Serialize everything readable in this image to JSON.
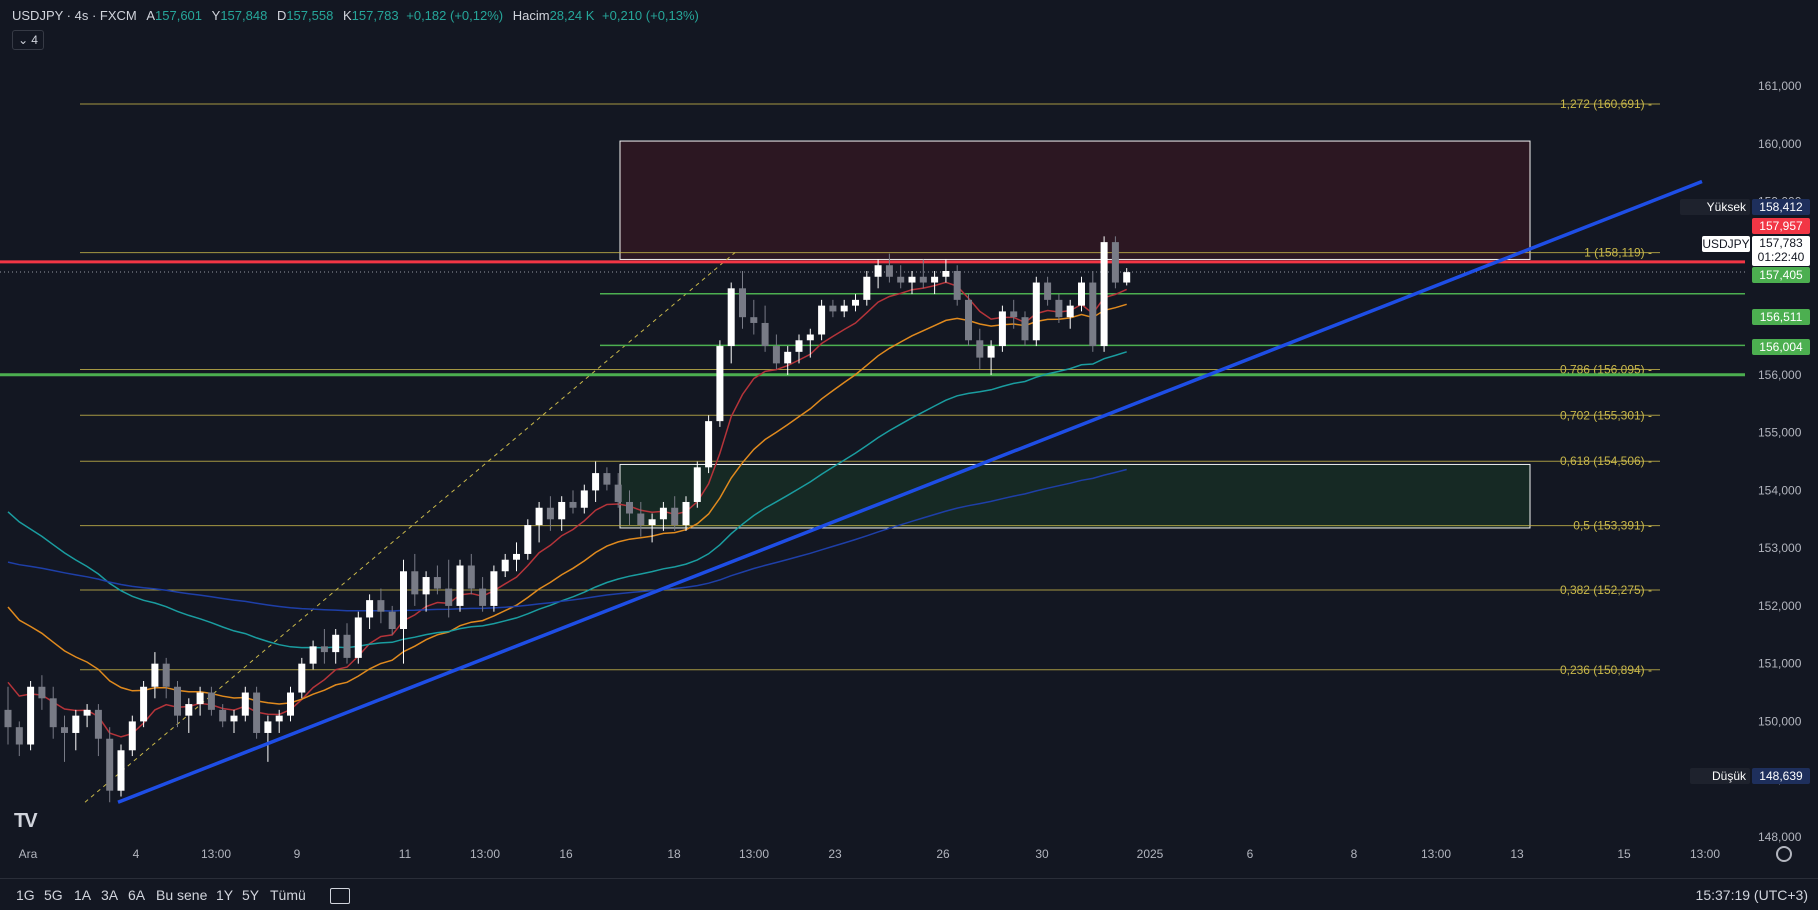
{
  "header": {
    "symbol": "USDJPY · 4s · FXCM",
    "open_k": "A",
    "open": "157,601",
    "high_k": "Y",
    "high": "157,848",
    "low_k": "D",
    "low": "157,558",
    "close_k": "K",
    "close": "157,783",
    "change": "+0,182 (+0,12%)",
    "volume_k": "Hacim",
    "volume": "28,24 K",
    "volume_change": "+0,210 (+0,13%)",
    "indicator_count": "4"
  },
  "toolbar": {
    "timeframes": [
      "1G",
      "5G",
      "1A",
      "3A",
      "6A",
      "Bu sene",
      "1Y",
      "5Y",
      "Tümü"
    ],
    "clock": "15:37:19 (UTC+3)"
  },
  "price_tags": {
    "high_label": "Yüksek",
    "high_value": "158,412",
    "red_line": "157,957",
    "symbol_label": "USDJPY",
    "last_price": "157,783",
    "countdown": "01:22:40",
    "green1": "157,405",
    "green2": "156,511",
    "green3": "156,004",
    "low_label": "Düşük",
    "low_value": "148,639"
  },
  "colors": {
    "background": "#131722",
    "bull": "#ffffff",
    "bear": "#787b86",
    "fib": "#c9b84a",
    "trendline": "#1e4ee6",
    "resistance": "#f23645",
    "support": "#4caf50",
    "ma_fast": "#b5343a",
    "ma_mid": "#e08a1e",
    "ma_slow": "#1a9da0",
    "ma_long": "#1e3fa8",
    "zone_top": "#2e1722",
    "zone_bottom": "#172a25"
  },
  "chart_data": {
    "type": "candlestick",
    "symbol": "USDJPY",
    "ylim": [
      147.6,
      161.8
    ],
    "y_ticks": [
      "148,000",
      "149,000",
      "150,000",
      "151,000",
      "152,000",
      "153,000",
      "154,000",
      "155,000",
      "156,000",
      "157,000",
      "158,000",
      "159,000",
      "160,000",
      "161,000"
    ],
    "x_ticks": [
      "Ara",
      "4",
      "13:00",
      "9",
      "11",
      "13:00",
      "16",
      "18",
      "13:00",
      "23",
      "26",
      "30",
      "2025",
      "6",
      "8",
      "13:00",
      "13",
      "15",
      "13:00"
    ],
    "fib_levels": [
      {
        "ratio": "1,272",
        "value": 160.691,
        "label": "1,272 (160,691)"
      },
      {
        "ratio": "1",
        "value": 158.119,
        "label": "1 (158,119)"
      },
      {
        "ratio": "0,786",
        "value": 156.095,
        "label": "0,786 (156,095)"
      },
      {
        "ratio": "0,702",
        "value": 155.301,
        "label": "0,702 (155,301)"
      },
      {
        "ratio": "0,618",
        "value": 154.506,
        "label": "0,618 (154,506)"
      },
      {
        "ratio": "0,5",
        "value": 153.391,
        "label": "0,5 (153,391)"
      },
      {
        "ratio": "0,382",
        "value": 152.275,
        "label": "0,382 (152,275)"
      },
      {
        "ratio": "0,236",
        "value": 150.894,
        "label": "0,236 (150,894)"
      }
    ],
    "horizontal_lines": [
      {
        "kind": "resistance",
        "value": 157.957
      },
      {
        "kind": "support",
        "value": 157.405
      },
      {
        "kind": "support",
        "value": 156.511
      },
      {
        "kind": "support",
        "value": 156.004
      }
    ],
    "zones": [
      {
        "kind": "supply",
        "from": 158.0,
        "to": 160.05
      },
      {
        "kind": "demand",
        "from": 153.35,
        "to": 154.45
      }
    ],
    "trendline": {
      "from": 148.6,
      "to": 159.35
    },
    "candles": [
      [
        150.2,
        150.6,
        149.6,
        149.9
      ],
      [
        149.9,
        150.0,
        149.4,
        149.6
      ],
      [
        149.6,
        150.7,
        149.5,
        150.6
      ],
      [
        150.6,
        150.8,
        150.2,
        150.4
      ],
      [
        150.4,
        150.6,
        149.7,
        149.9
      ],
      [
        149.9,
        150.1,
        149.3,
        149.8
      ],
      [
        149.8,
        150.2,
        149.5,
        150.1
      ],
      [
        150.1,
        150.3,
        149.9,
        150.2
      ],
      [
        150.2,
        150.3,
        149.4,
        149.7
      ],
      [
        149.7,
        149.9,
        148.6,
        148.8
      ],
      [
        148.8,
        149.6,
        148.7,
        149.5
      ],
      [
        149.5,
        150.1,
        149.4,
        150.0
      ],
      [
        150.0,
        150.7,
        149.9,
        150.6
      ],
      [
        150.6,
        151.2,
        150.4,
        151.0
      ],
      [
        151.0,
        151.1,
        150.4,
        150.6
      ],
      [
        150.6,
        150.7,
        149.9,
        150.1
      ],
      [
        150.1,
        150.4,
        149.8,
        150.3
      ],
      [
        150.3,
        150.6,
        150.1,
        150.5
      ],
      [
        150.5,
        150.6,
        150.1,
        150.2
      ],
      [
        150.2,
        150.3,
        149.9,
        150.0
      ],
      [
        150.0,
        150.2,
        149.8,
        150.1
      ],
      [
        150.1,
        150.6,
        150.0,
        150.5
      ],
      [
        150.5,
        150.6,
        149.7,
        149.8
      ],
      [
        149.8,
        150.1,
        149.3,
        150.0
      ],
      [
        150.0,
        150.2,
        149.8,
        150.1
      ],
      [
        150.1,
        150.6,
        150.0,
        150.5
      ],
      [
        150.5,
        151.1,
        150.4,
        151.0
      ],
      [
        151.0,
        151.4,
        150.9,
        151.3
      ],
      [
        151.3,
        151.6,
        151.0,
        151.2
      ],
      [
        151.2,
        151.6,
        151.0,
        151.5
      ],
      [
        151.5,
        151.7,
        151.0,
        151.1
      ],
      [
        151.1,
        151.9,
        151.0,
        151.8
      ],
      [
        151.8,
        152.2,
        151.6,
        152.1
      ],
      [
        152.1,
        152.3,
        151.7,
        151.9
      ],
      [
        151.9,
        152.0,
        151.5,
        151.6
      ],
      [
        151.6,
        152.8,
        151.0,
        152.6
      ],
      [
        152.6,
        152.9,
        152.0,
        152.2
      ],
      [
        152.2,
        152.6,
        151.9,
        152.5
      ],
      [
        152.5,
        152.7,
        152.2,
        152.3
      ],
      [
        152.3,
        152.8,
        151.8,
        152.0
      ],
      [
        152.0,
        152.8,
        151.9,
        152.7
      ],
      [
        152.7,
        152.9,
        152.2,
        152.3
      ],
      [
        152.3,
        152.5,
        151.9,
        152.0
      ],
      [
        152.0,
        152.7,
        151.9,
        152.6
      ],
      [
        152.6,
        152.9,
        152.5,
        152.8
      ],
      [
        152.8,
        153.1,
        152.6,
        152.9
      ],
      [
        152.9,
        153.5,
        152.8,
        153.4
      ],
      [
        153.4,
        153.8,
        153.1,
        153.7
      ],
      [
        153.7,
        153.9,
        153.3,
        153.5
      ],
      [
        153.5,
        153.9,
        153.3,
        153.8
      ],
      [
        153.8,
        154.0,
        153.6,
        153.7
      ],
      [
        153.7,
        154.1,
        153.6,
        154.0
      ],
      [
        154.0,
        154.5,
        153.8,
        154.3
      ],
      [
        154.3,
        154.4,
        154.0,
        154.1
      ],
      [
        154.1,
        154.3,
        153.7,
        153.8
      ],
      [
        153.8,
        154.0,
        153.4,
        153.6
      ],
      [
        153.6,
        153.8,
        153.2,
        153.4
      ],
      [
        153.4,
        153.6,
        153.1,
        153.5
      ],
      [
        153.5,
        153.8,
        153.3,
        153.7
      ],
      [
        153.7,
        153.9,
        153.3,
        153.4
      ],
      [
        153.4,
        153.9,
        153.3,
        153.8
      ],
      [
        153.8,
        154.5,
        153.7,
        154.4
      ],
      [
        154.4,
        155.3,
        154.3,
        155.2
      ],
      [
        155.2,
        156.6,
        155.1,
        156.5
      ],
      [
        156.5,
        157.6,
        156.2,
        157.5
      ],
      [
        157.5,
        157.8,
        156.8,
        157.0
      ],
      [
        157.0,
        157.3,
        156.7,
        156.9
      ],
      [
        156.9,
        157.2,
        156.4,
        156.5
      ],
      [
        156.5,
        156.7,
        156.1,
        156.2
      ],
      [
        156.2,
        156.5,
        156.0,
        156.4
      ],
      [
        156.4,
        156.7,
        156.2,
        156.6
      ],
      [
        156.6,
        156.8,
        156.3,
        156.7
      ],
      [
        156.7,
        157.3,
        156.6,
        157.2
      ],
      [
        157.2,
        157.3,
        157.0,
        157.1
      ],
      [
        157.1,
        157.3,
        157.0,
        157.2
      ],
      [
        157.2,
        157.4,
        157.1,
        157.3
      ],
      [
        157.3,
        157.8,
        157.2,
        157.7
      ],
      [
        157.7,
        158.0,
        157.5,
        157.9
      ],
      [
        157.9,
        158.1,
        157.6,
        157.7
      ],
      [
        157.7,
        157.9,
        157.5,
        157.6
      ],
      [
        157.6,
        157.8,
        157.4,
        157.7
      ],
      [
        157.7,
        158.0,
        157.5,
        157.6
      ],
      [
        157.6,
        157.8,
        157.4,
        157.7
      ],
      [
        157.7,
        158.0,
        157.6,
        157.8
      ],
      [
        157.8,
        157.9,
        157.2,
        157.3
      ],
      [
        157.3,
        157.4,
        156.5,
        156.6
      ],
      [
        156.6,
        156.8,
        156.1,
        156.3
      ],
      [
        156.3,
        156.6,
        156.0,
        156.5
      ],
      [
        156.5,
        157.2,
        156.4,
        157.1
      ],
      [
        157.1,
        157.3,
        156.8,
        157.0
      ],
      [
        157.0,
        157.1,
        156.5,
        156.6
      ],
      [
        156.6,
        157.7,
        156.5,
        157.6
      ],
      [
        157.6,
        157.7,
        157.2,
        157.3
      ],
      [
        157.3,
        157.4,
        156.9,
        157.0
      ],
      [
        157.0,
        157.3,
        156.8,
        157.2
      ],
      [
        157.2,
        157.7,
        157.1,
        157.6
      ],
      [
        157.6,
        157.8,
        156.4,
        156.5
      ],
      [
        156.5,
        158.4,
        156.4,
        158.3
      ],
      [
        158.3,
        158.4,
        157.5,
        157.6
      ],
      [
        157.6,
        157.85,
        157.55,
        157.78
      ]
    ]
  }
}
